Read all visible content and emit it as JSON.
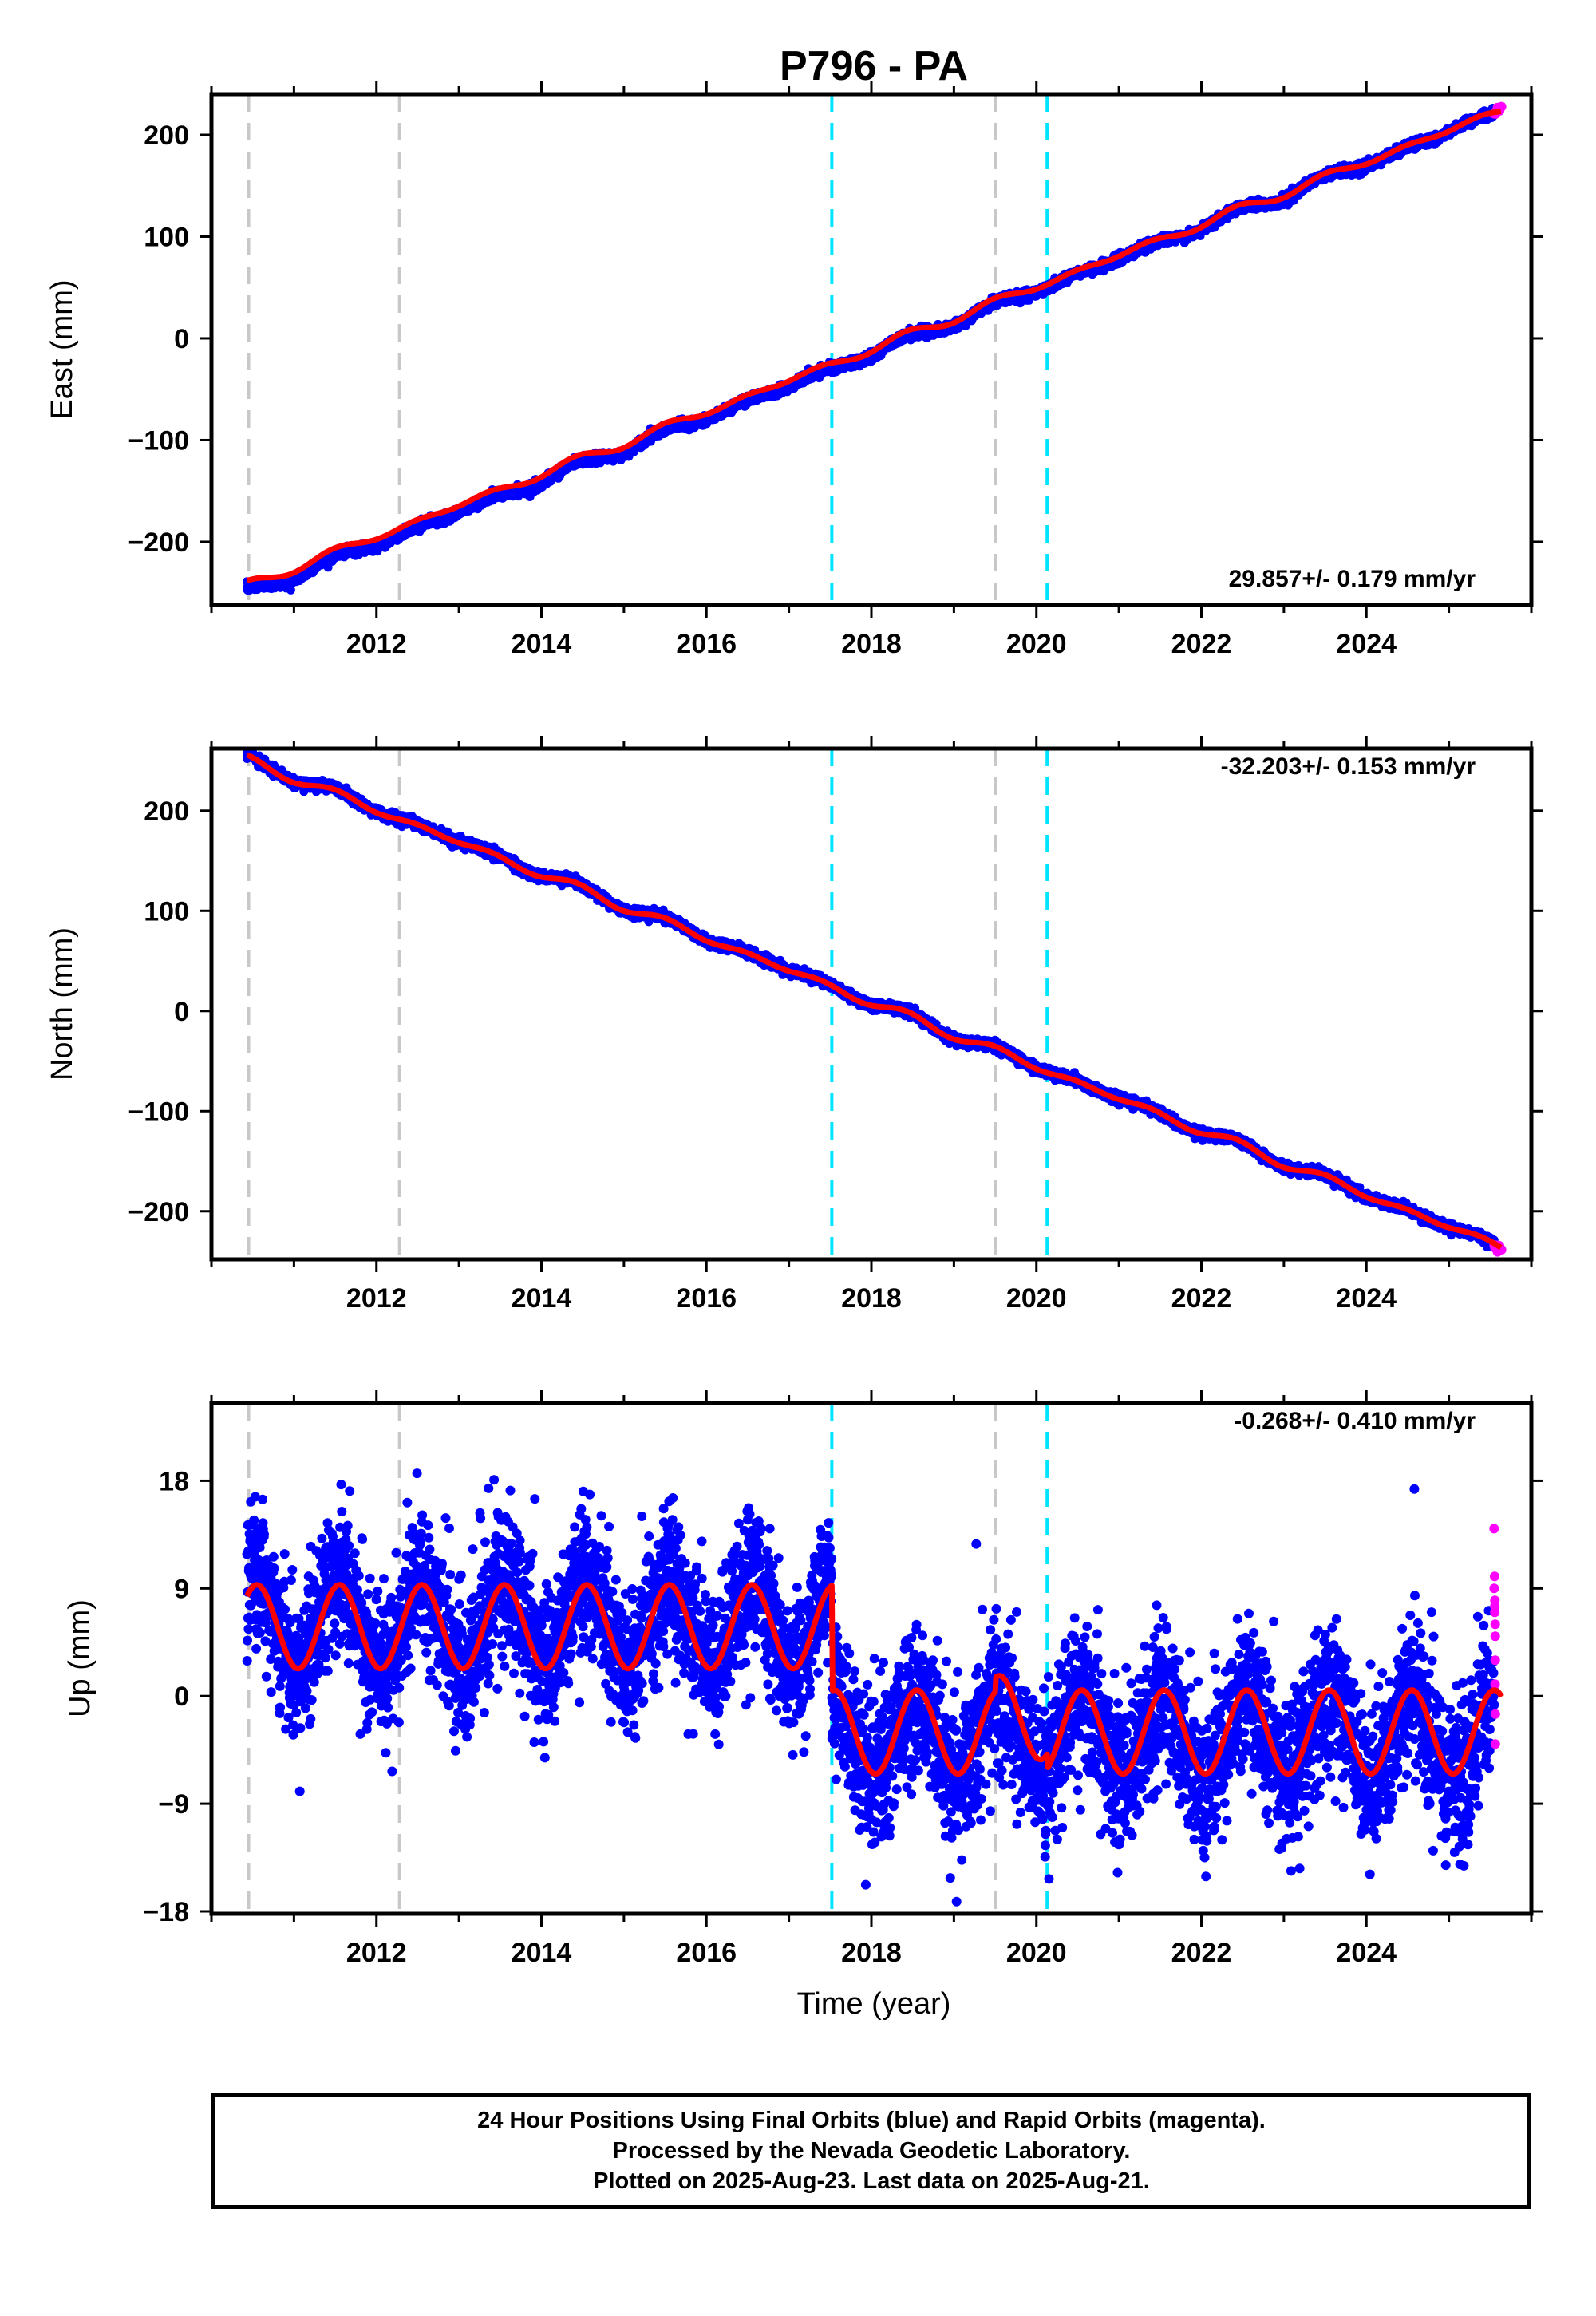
{
  "title": "P796 - PA",
  "xlabel": "Time (year)",
  "footer": {
    "line1": "24 Hour Positions Using Final Orbits (blue) and Rapid Orbits (magenta).",
    "line2": "Processed by the Nevada Geodetic Laboratory.",
    "line3": "Plotted on 2025-Aug-23. Last data on 2025-Aug-21."
  },
  "colors": {
    "final_orbits": "#0000ff",
    "rapid_orbits": "#ff00ff",
    "model": "#ff0000",
    "antenna_change": "#c8c8c8",
    "equipment_change": "#00e5ff"
  },
  "chart_data": [
    {
      "type": "scatter",
      "panel": "east",
      "ylabel": "East (mm)",
      "xlim": [
        2010.0,
        2026.0
      ],
      "ylim": [
        -262,
        240
      ],
      "xticks": [
        2012,
        2014,
        2016,
        2018,
        2020,
        2022,
        2024
      ],
      "yticks": [
        -200,
        -100,
        0,
        100,
        200
      ],
      "rate_label": "29.857+/- 0.179 mm/yr",
      "rate_position": "bottom-right",
      "series": [
        {
          "name": "Final Orbits",
          "color": "#0000ff",
          "start": 2010.43,
          "end": 2025.55,
          "value_at_start": -250,
          "value_at_end": 220
        },
        {
          "name": "Rapid Orbits",
          "color": "#ff00ff",
          "start": 2025.55,
          "end": 2025.64,
          "value_at_start": 222,
          "value_at_end": 227
        },
        {
          "name": "Model",
          "color": "#ff0000",
          "start": 2010.43,
          "end": 2025.64,
          "value_at_start": -243,
          "value_at_end": 224
        }
      ]
    },
    {
      "type": "scatter",
      "panel": "north",
      "ylabel": "North (mm)",
      "xlim": [
        2010.0,
        2026.0
      ],
      "ylim": [
        -248,
        262
      ],
      "xticks": [
        2012,
        2014,
        2016,
        2018,
        2020,
        2022,
        2024
      ],
      "yticks": [
        -200,
        -100,
        0,
        100,
        200
      ],
      "rate_label": "-32.203+/- 0.153 mm/yr",
      "rate_position": "top-right",
      "series": [
        {
          "name": "Final Orbits",
          "color": "#0000ff",
          "start": 2010.43,
          "end": 2025.55,
          "value_at_start": 252,
          "value_at_end": -233
        },
        {
          "name": "Rapid Orbits",
          "color": "#ff00ff",
          "start": 2025.55,
          "end": 2025.64,
          "value_at_start": -235,
          "value_at_end": -238
        },
        {
          "name": "Model",
          "color": "#ff0000",
          "start": 2010.43,
          "end": 2025.64,
          "value_at_start": 251,
          "value_at_end": -236
        }
      ]
    },
    {
      "type": "scatter",
      "panel": "up",
      "ylabel": "Up (mm)",
      "xlim": [
        2010.0,
        2026.0
      ],
      "ylim": [
        -18.2,
        24.5
      ],
      "xticks": [
        2012,
        2014,
        2016,
        2018,
        2020,
        2022,
        2024
      ],
      "yticks": [
        -18,
        -9,
        0,
        9,
        18
      ],
      "rate_label": "-0.268+/- 0.410 mm/yr",
      "rate_position": "top-right",
      "series": [
        {
          "name": "Final Orbits",
          "color": "#0000ff",
          "start": 2010.43,
          "end": 2025.55,
          "mean_before_2017_5": 6.2,
          "mean_after_2017_5": -3.5,
          "seasonal_amplitude_mm": 3.5,
          "scatter_sd_mm": 3.0
        },
        {
          "name": "Rapid Orbits",
          "color": "#ff00ff",
          "start": 2025.55,
          "end": 2025.64,
          "values": [
            14,
            10,
            9,
            8,
            7.5,
            7,
            6,
            5,
            3,
            1,
            -1.5,
            -4
          ]
        },
        {
          "name": "Model",
          "color": "#ff0000",
          "start": 2010.43,
          "end": 2025.64,
          "offset_before": 5.8,
          "offset_after": -3.0,
          "seasonal_amplitude_mm": 3.5
        }
      ]
    }
  ],
  "event_lines": {
    "antenna_change": [
      2010.45,
      2012.28,
      2019.5
    ],
    "equipment_change": [
      2017.52,
      2020.13
    ]
  }
}
